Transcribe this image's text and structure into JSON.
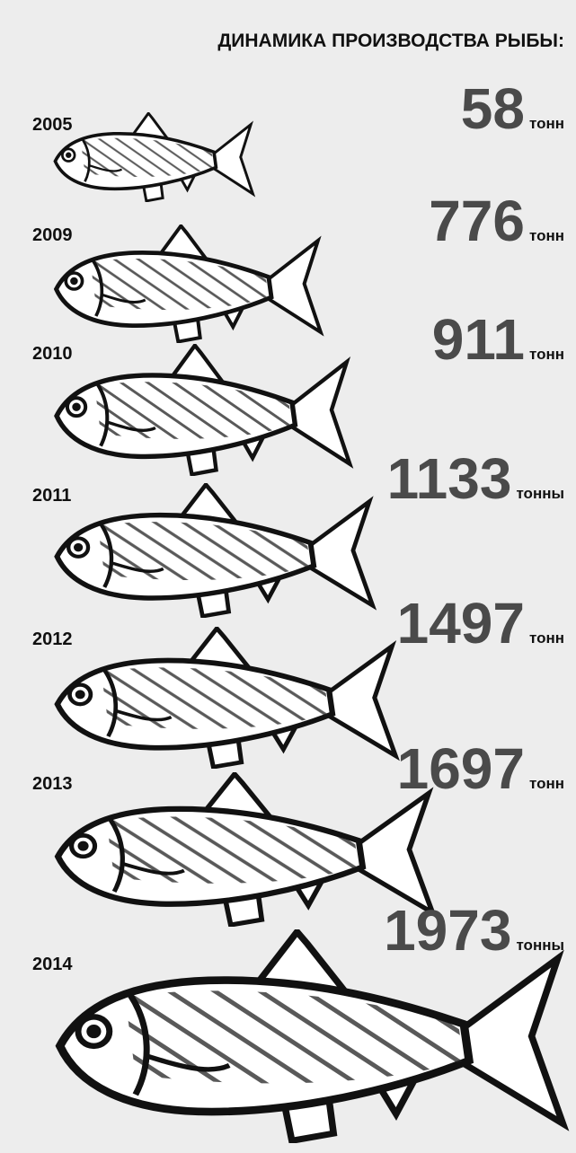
{
  "header": {
    "title": "ДИНАМИКА ПРОИЗВОДСТВА РЫБЫ:"
  },
  "items": [
    {
      "year": "2005",
      "amount": 58,
      "unit": "тонн"
    },
    {
      "year": "2009",
      "amount": 776,
      "unit": "тонн"
    },
    {
      "year": "2010",
      "amount": 911,
      "unit": "тонн"
    },
    {
      "year": "2011",
      "amount": 1133,
      "unit": "тонны"
    },
    {
      "year": "2012",
      "amount": 1497,
      "unit": "тонн"
    },
    {
      "year": "2013",
      "amount": 1697,
      "unit": "тонн"
    },
    {
      "year": "2014",
      "amount": 1973,
      "unit": "тонны"
    }
  ]
}
